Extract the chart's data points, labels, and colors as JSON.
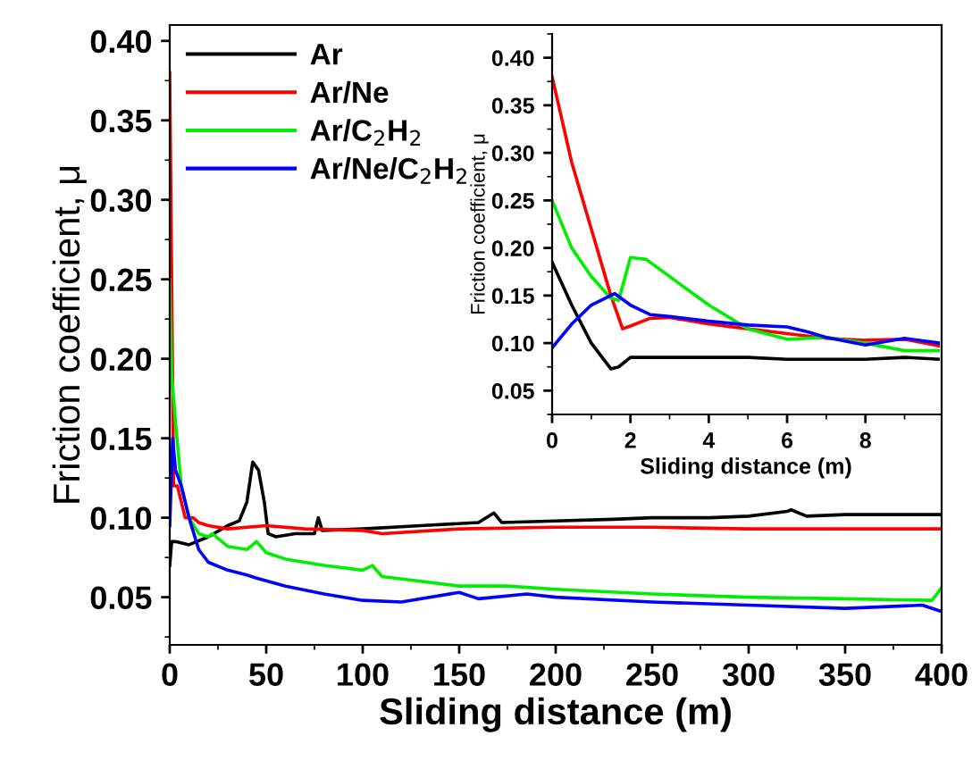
{
  "chart_data": [
    {
      "type": "line",
      "xlabel": "Sliding distance (m)",
      "ylabel": "Friction coefficient, μ",
      "xlim": [
        0,
        400
      ],
      "ylim": [
        0.02,
        0.41
      ],
      "xticks": [
        0,
        50,
        100,
        150,
        200,
        250,
        300,
        350,
        400
      ],
      "yticks": [
        0.05,
        {
          "value": 0.1,
          "label": "0.10"
        },
        0.15,
        {
          "value": 0.2,
          "label": "0.20"
        },
        0.25,
        {
          "value": 0.3,
          "label": "0.30"
        },
        0.35,
        {
          "value": 0.4,
          "label": "0.40"
        }
      ],
      "legend": "top left",
      "grid": false,
      "series": [
        {
          "name": "Ar",
          "color": "#000000",
          "x": [
            0,
            1,
            3,
            10,
            20,
            30,
            36,
            40,
            43,
            46,
            49,
            51,
            55,
            65,
            75,
            77,
            79,
            100,
            130,
            160,
            168,
            172,
            200,
            230,
            250,
            280,
            300,
            320,
            322,
            330,
            350,
            380,
            400
          ],
          "values": [
            0.07,
            0.085,
            0.085,
            0.083,
            0.088,
            0.095,
            0.098,
            0.11,
            0.135,
            0.13,
            0.11,
            0.09,
            0.088,
            0.09,
            0.09,
            0.1,
            0.092,
            0.093,
            0.095,
            0.097,
            0.103,
            0.097,
            0.098,
            0.099,
            0.1,
            0.1,
            0.101,
            0.104,
            0.105,
            0.101,
            0.102,
            0.102,
            0.102
          ]
        },
        {
          "name": "Ar/Ne",
          "color": "#ff0000",
          "x": [
            0,
            1,
            2,
            4,
            8,
            12,
            15,
            20,
            30,
            50,
            70,
            100,
            110,
            150,
            200,
            250,
            300,
            350,
            400
          ],
          "values": [
            0.38,
            0.25,
            0.12,
            0.12,
            0.1,
            0.1,
            0.097,
            0.095,
            0.093,
            0.095,
            0.093,
            0.092,
            0.09,
            0.093,
            0.094,
            0.094,
            0.093,
            0.093,
            0.093
          ]
        },
        {
          "name": "Ar/C$_{2}$H$_{2}$",
          "color": "#00ee00",
          "x": [
            0,
            1,
            3,
            6,
            10,
            15,
            20,
            22,
            30,
            40,
            45,
            50,
            60,
            80,
            100,
            105,
            110,
            130,
            150,
            175,
            200,
            250,
            300,
            350,
            395,
            400
          ],
          "values": [
            0.25,
            0.19,
            0.16,
            0.12,
            0.1,
            0.09,
            0.088,
            0.09,
            0.082,
            0.08,
            0.085,
            0.078,
            0.074,
            0.07,
            0.067,
            0.07,
            0.063,
            0.06,
            0.057,
            0.057,
            0.055,
            0.052,
            0.05,
            0.049,
            0.048,
            0.056
          ]
        },
        {
          "name": "Ar/Ne/C$_{2}$H$_{2}$",
          "color": "#0000ff",
          "x": [
            0,
            1.5,
            3,
            6,
            10,
            15,
            20,
            30,
            40,
            45,
            60,
            80,
            100,
            120,
            150,
            160,
            185,
            200,
            250,
            300,
            350,
            390,
            400
          ],
          "values": [
            0.095,
            0.15,
            0.13,
            0.12,
            0.1,
            0.08,
            0.072,
            0.067,
            0.064,
            0.062,
            0.057,
            0.052,
            0.048,
            0.047,
            0.053,
            0.049,
            0.052,
            0.05,
            0.047,
            0.045,
            0.043,
            0.045,
            0.041
          ]
        }
      ]
    },
    {
      "type": "line",
      "xlabel": "Sliding distance (m)",
      "ylabel": "Friction coefficient, μ",
      "xlim": [
        0,
        9.9
      ],
      "ylim": [
        0.025,
        0.425
      ],
      "xticks": [
        0,
        2,
        4,
        6,
        8
      ],
      "yticks": [
        0.05,
        {
          "value": 0.1,
          "label": "0.10"
        },
        0.15,
        {
          "value": 0.2,
          "label": "0.20"
        },
        0.25,
        {
          "value": 0.3,
          "label": "0.30"
        },
        0.35,
        {
          "value": 0.4,
          "label": "0.40"
        }
      ],
      "grid": false,
      "series": [
        {
          "color": "#000000",
          "x": [
            0,
            0.5,
            1,
            1.5,
            1.7,
            2,
            3,
            4,
            5,
            6,
            7,
            8,
            9,
            9.9
          ],
          "values": [
            0.185,
            0.14,
            0.1,
            0.073,
            0.075,
            0.085,
            0.085,
            0.085,
            0.085,
            0.083,
            0.083,
            0.083,
            0.085,
            0.083
          ]
        },
        {
          "color": "#ff0000",
          "x": [
            0,
            0.5,
            1,
            1.5,
            1.8,
            2,
            2.5,
            3,
            4,
            5,
            6,
            7,
            8,
            9,
            9.9
          ],
          "values": [
            0.38,
            0.29,
            0.22,
            0.15,
            0.115,
            0.118,
            0.126,
            0.127,
            0.12,
            0.115,
            0.11,
            0.105,
            0.103,
            0.104,
            0.097
          ]
        },
        {
          "color": "#00ee00",
          "x": [
            0,
            0.5,
            1,
            1.5,
            1.7,
            2,
            2.4,
            3,
            4,
            5,
            6,
            7,
            8,
            9,
            9.9
          ],
          "values": [
            0.25,
            0.2,
            0.17,
            0.147,
            0.145,
            0.19,
            0.188,
            0.17,
            0.14,
            0.115,
            0.104,
            0.106,
            0.1,
            0.092,
            0.092
          ]
        },
        {
          "color": "#0000ff",
          "x": [
            0,
            0.5,
            1,
            1.6,
            2,
            2.5,
            3,
            4,
            5,
            6,
            6.5,
            7,
            8,
            9,
            9.9
          ],
          "values": [
            0.095,
            0.12,
            0.14,
            0.152,
            0.14,
            0.13,
            0.128,
            0.123,
            0.119,
            0.117,
            0.112,
            0.106,
            0.098,
            0.105,
            0.1
          ]
        }
      ]
    }
  ]
}
